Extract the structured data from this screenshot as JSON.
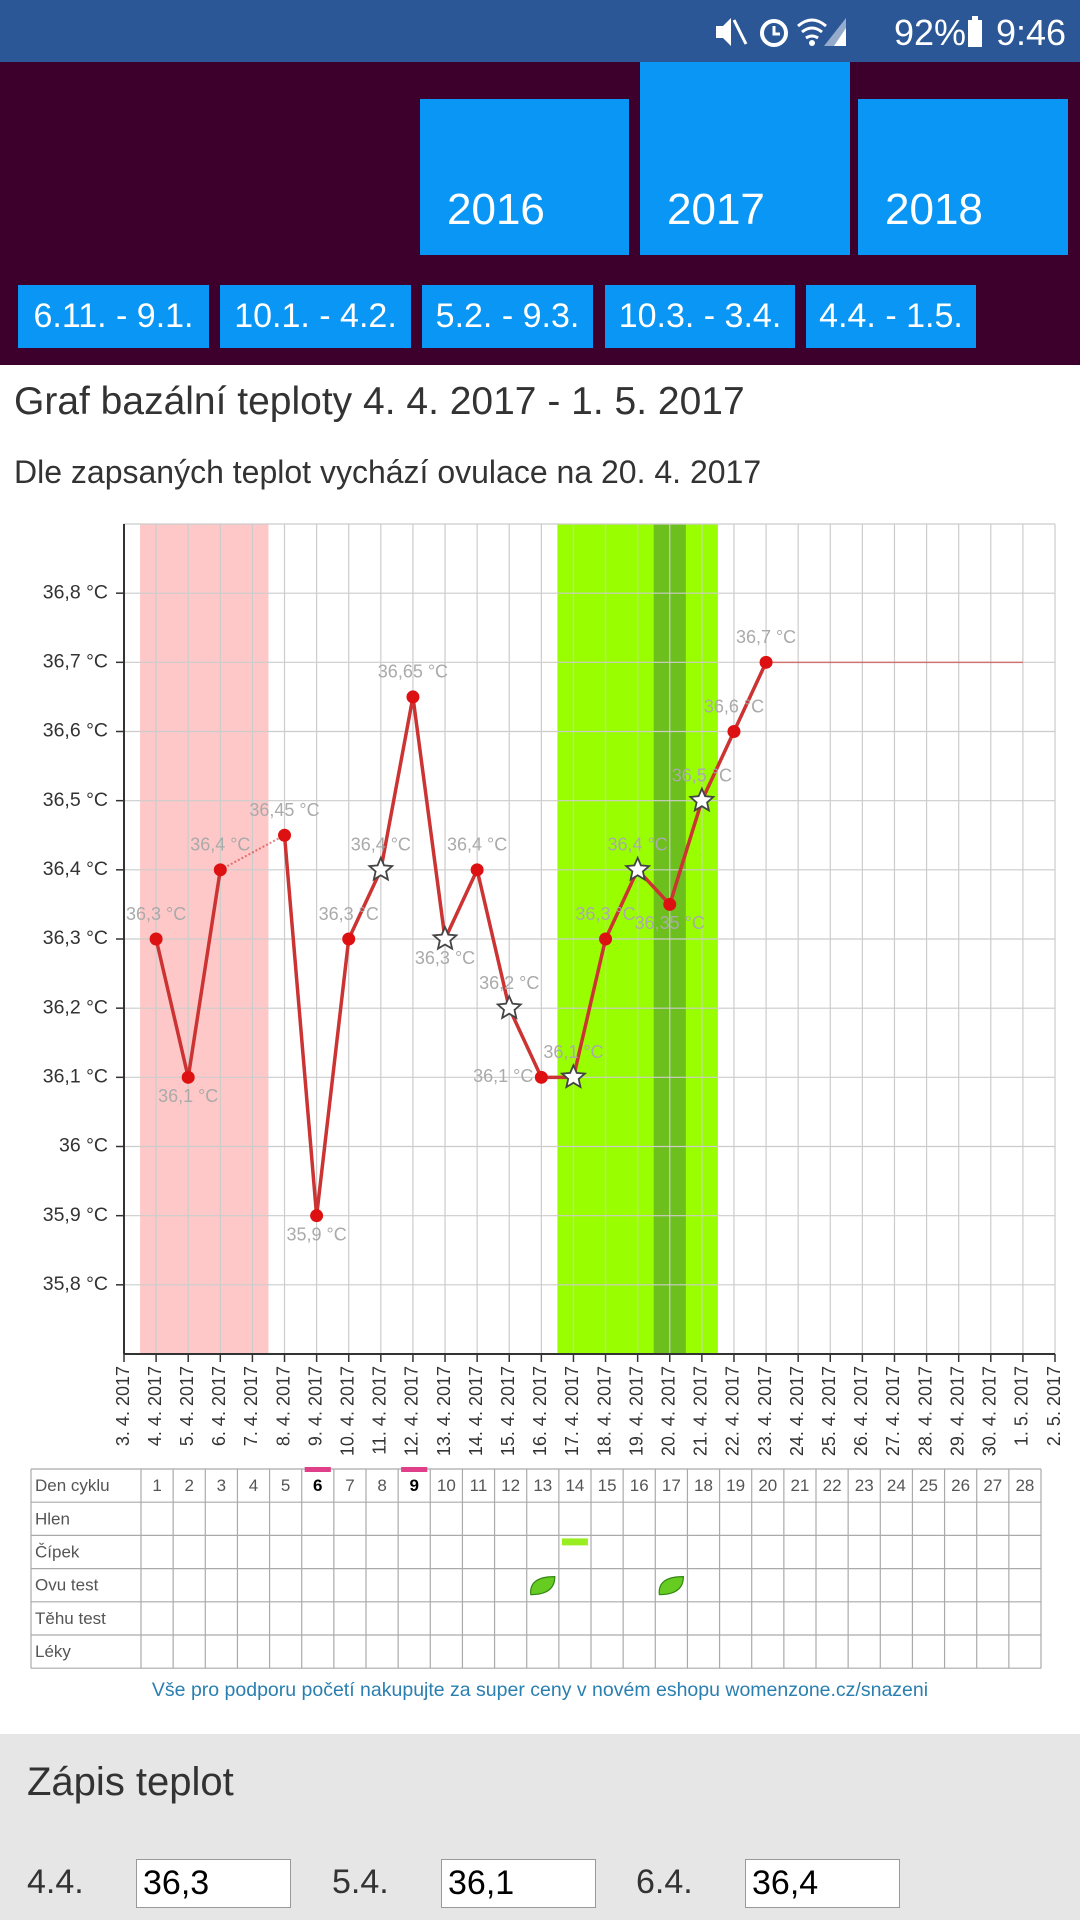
{
  "status_bar": {
    "battery": "92%",
    "time": "9:46"
  },
  "year_tabs": [
    "2016",
    "2017",
    "2018"
  ],
  "range_tabs": [
    "6.11. - 9.1.",
    "10.1. - 4.2.",
    "5.2. - 9.3.",
    "10.3. - 3.4.",
    "4.4. - 1.5."
  ],
  "chart_data": {
    "type": "line",
    "title": "Graf bazální teploty 4. 4. 2017 - 1. 5. 2017",
    "subtitle": "Dle zapsaných teplot vychází ovulace na 20. 4. 2017",
    "categories": [
      "3. 4. 2017",
      "4. 4. 2017",
      "5. 4. 2017",
      "6. 4. 2017",
      "7. 4. 2017",
      "8. 4. 2017",
      "9. 4. 2017",
      "10. 4. 2017",
      "11. 4. 2017",
      "12. 4. 2017",
      "13. 4. 2017",
      "14. 4. 2017",
      "15. 4. 2017",
      "16. 4. 2017",
      "17. 4. 2017",
      "18. 4. 2017",
      "19. 4. 2017",
      "20. 4. 2017",
      "21. 4. 2017",
      "22. 4. 2017",
      "23. 4. 2017",
      "24. 4. 2017",
      "25. 4. 2017",
      "26. 4. 2017",
      "27. 4. 2017",
      "28. 4. 2017",
      "29. 4. 2017",
      "30. 4. 2017",
      "1. 5. 2017",
      "2. 5. 2017"
    ],
    "series": [
      {
        "color": "#cc3333",
        "values": [
          null,
          36.3,
          36.1,
          36.4,
          null,
          36.45,
          35.9,
          36.3,
          36.4,
          36.65,
          36.3,
          36.4,
          36.2,
          36.1,
          36.1,
          36.3,
          36.4,
          36.35,
          36.5,
          36.6,
          36.7,
          null,
          null,
          null,
          null,
          null,
          null,
          null,
          null,
          null
        ],
        "value_labels": [
          null,
          "36,3 °C",
          "36,1 °C",
          "36,4 °C",
          null,
          "36,45 °C",
          "35,9 °C",
          "36,3 °C",
          "36,4 °C",
          "36,65 °C",
          "36,3 °C",
          "36,4 °C",
          "36,2 °C",
          "36,1 °C",
          "36,1 °C",
          "36,3 °C",
          "36,4 °C",
          "36,35 °C",
          "36,5 °C",
          "36,6 °C",
          "36,7 °C",
          null,
          null,
          null,
          null,
          null,
          null,
          null,
          null,
          null
        ],
        "markers": [
          null,
          "dot",
          "dot",
          "dot",
          null,
          "dot",
          "dot",
          "dot",
          "star",
          "dot",
          "star",
          "dot",
          "star",
          "dot",
          "star",
          "dot",
          "star",
          "dot",
          "star",
          "dot",
          "dot",
          null,
          null,
          null,
          null,
          null,
          null,
          null,
          null,
          null
        ]
      }
    ],
    "bands": [
      {
        "from": "4. 4. 2017",
        "to": "7. 4. 2017",
        "color": "#ffc8c8"
      },
      {
        "from": "17. 4. 2017",
        "to": "21. 4. 2017",
        "color": "#99ff00"
      },
      {
        "from": "20. 4. 2017",
        "to": "20. 4. 2017",
        "color": "#6cbf1c"
      }
    ],
    "ylim": [
      35.7,
      36.9
    ],
    "yticks": [
      {
        "value": 35.8,
        "label": "35,8 °C"
      },
      {
        "value": 35.9,
        "label": "35,9 °C"
      },
      {
        "value": 36,
        "label": "36 °C"
      },
      {
        "value": 36.1,
        "label": "36,1 °C"
      },
      {
        "value": 36.2,
        "label": "36,2 °C"
      },
      {
        "value": 36.3,
        "label": "36,3 °C"
      },
      {
        "value": 36.4,
        "label": "36,4 °C"
      },
      {
        "value": 36.5,
        "label": "36,5 °C"
      },
      {
        "value": 36.6,
        "label": "36,6 °C"
      },
      {
        "value": 36.7,
        "label": "36,7 °C"
      },
      {
        "value": 36.8,
        "label": "36,8 °C"
      }
    ],
    "grid": true
  },
  "cycle_table": {
    "header_label": "Den cyklu",
    "days": [
      1,
      2,
      3,
      4,
      5,
      6,
      7,
      8,
      9,
      10,
      11,
      12,
      13,
      14,
      15,
      16,
      17,
      18,
      19,
      20,
      21,
      22,
      23,
      24,
      25,
      26,
      27,
      28
    ],
    "highlighted_days": [
      6,
      9
    ],
    "rows": [
      {
        "label": "Hlen"
      },
      {
        "label": "Čípek",
        "mark": "bar",
        "marked_days": [
          14
        ]
      },
      {
        "label": "Ovu test",
        "mark": "leaf",
        "marked_days": [
          13,
          17
        ]
      },
      {
        "label": "Těhu test"
      },
      {
        "label": "Léky"
      }
    ]
  },
  "shop_link": "Vše pro podporu početí nakupujte za super ceny v novém eshopu womenzone.cz/snazeni",
  "entry": {
    "title": "Zápis teplot",
    "items": [
      {
        "date": "4.4.",
        "value": "36,3"
      },
      {
        "date": "5.4.",
        "value": "36,1"
      },
      {
        "date": "6.4.",
        "value": "36,4"
      }
    ]
  }
}
